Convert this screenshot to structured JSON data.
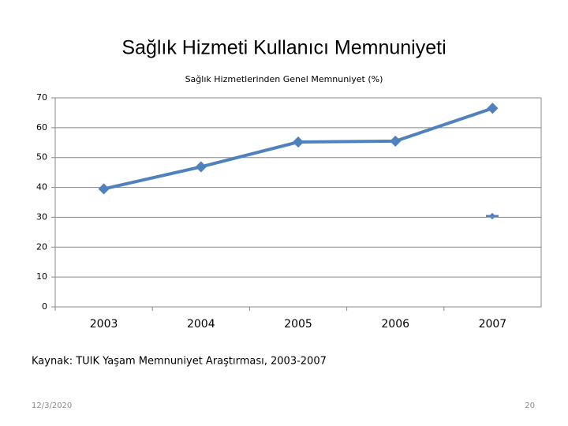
{
  "slide_title": "Sağlık Hizmeti Kullanıcı Memnuniyeti",
  "chart_data": {
    "type": "line",
    "title": "Sağlık Hizmetlerinden Genel Memnuniyet (%)",
    "categories": [
      "2003",
      "2004",
      "2005",
      "2006",
      "2007"
    ],
    "series": [
      {
        "color": "#4f81bd",
        "values": [
          39.5,
          46.9,
          55.2,
          55.5,
          66.5
        ]
      }
    ],
    "ylim": [
      0,
      70
    ],
    "yticks": [
      0,
      10,
      20,
      30,
      40,
      50,
      60,
      70
    ],
    "grid": true
  },
  "source": "Kaynak: TUIK Yaşam Memnuniyet Araştırması, 2003-2007",
  "footer": {
    "date": "12/3/2020",
    "page": "20"
  }
}
